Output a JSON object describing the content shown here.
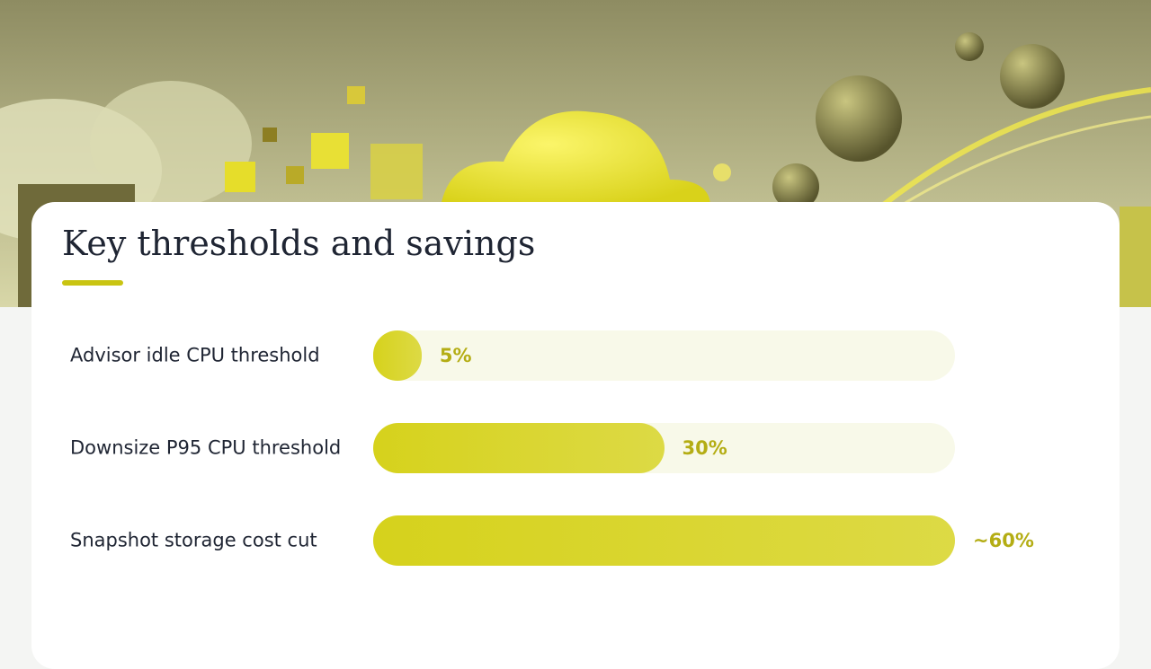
{
  "chart_data": {
    "type": "bar",
    "orientation": "horizontal",
    "title": "Key thresholds and savings",
    "categories": [
      "Advisor idle CPU threshold",
      "Downsize P95 CPU threshold",
      "Snapshot storage cost cut"
    ],
    "values": [
      5,
      30,
      60
    ],
    "value_labels": [
      "5%",
      "30%",
      "~60%"
    ],
    "xlim": [
      0,
      60
    ],
    "color": "#d6d21c"
  }
}
